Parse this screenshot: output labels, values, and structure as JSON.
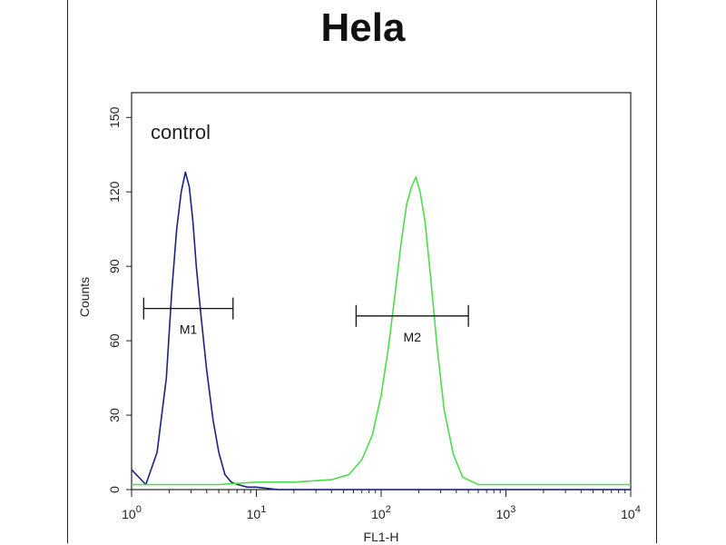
{
  "chart_data": {
    "type": "line",
    "title": "Hela",
    "xlabel": "FL1-H",
    "ylabel": "Counts",
    "x_scale": "log",
    "xlim": [
      1,
      10000
    ],
    "ylim": [
      0,
      160
    ],
    "x_ticks": [
      {
        "value": 1,
        "base": "10",
        "exp": "0"
      },
      {
        "value": 10,
        "base": "10",
        "exp": "1"
      },
      {
        "value": 100,
        "base": "10",
        "exp": "2"
      },
      {
        "value": 1000,
        "base": "10",
        "exp": "3"
      },
      {
        "value": 10000,
        "base": "10",
        "exp": "4"
      }
    ],
    "y_ticks": [
      0,
      30,
      60,
      90,
      120,
      150
    ],
    "grid": false,
    "annotation": "control",
    "series": [
      {
        "color": "#1a237e",
        "x": [
          1,
          1.3,
          1.6,
          1.9,
          2.1,
          2.3,
          2.5,
          2.7,
          2.9,
          3.1,
          3.3,
          3.6,
          4.0,
          4.5,
          5.0,
          5.6,
          6.3,
          7.1,
          8.5,
          10,
          15,
          30,
          100,
          1000,
          10000
        ],
        "y": [
          8,
          2,
          15,
          45,
          80,
          105,
          120,
          128,
          122,
          108,
          90,
          70,
          48,
          28,
          15,
          6,
          3,
          2,
          1,
          1,
          0,
          0,
          0,
          0,
          0
        ]
      },
      {
        "color": "#4cdc4c",
        "x": [
          1,
          2,
          5,
          10,
          20,
          40,
          55,
          70,
          85,
          100,
          115,
          130,
          145,
          160,
          175,
          190,
          205,
          225,
          250,
          280,
          320,
          380,
          450,
          600,
          1000,
          3000,
          10000
        ],
        "y": [
          2,
          2,
          2,
          3,
          3,
          4,
          6,
          12,
          22,
          38,
          58,
          80,
          100,
          115,
          122,
          126,
          120,
          108,
          85,
          58,
          32,
          14,
          5,
          2,
          2,
          2,
          2
        ]
      }
    ],
    "markers": [
      {
        "label": "M1",
        "x_start": 1.25,
        "x_end": 6.5,
        "y": 73
      },
      {
        "label": "M2",
        "x_start": 63,
        "x_end": 500,
        "y": 70
      }
    ]
  }
}
